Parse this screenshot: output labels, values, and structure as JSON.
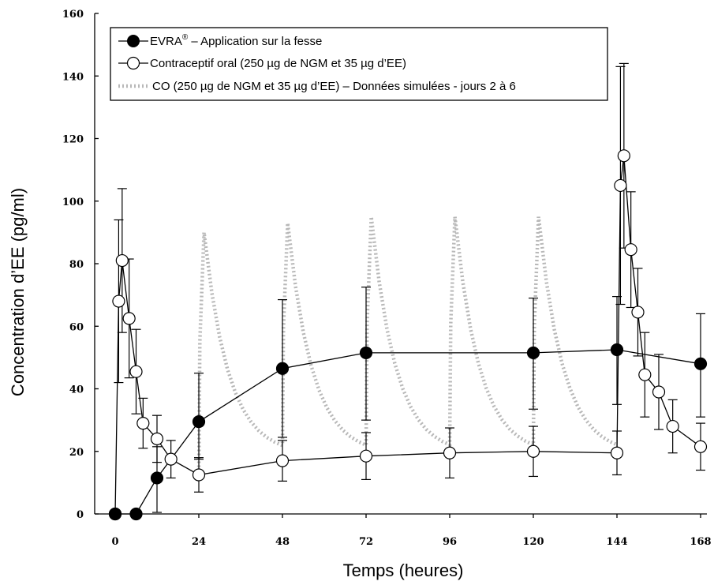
{
  "chart_data": {
    "type": "line",
    "xlabel": "Temps (heures)",
    "ylabel": "Concentration d’EE (pg/ml)",
    "xlim": [
      0,
      168
    ],
    "ylim": [
      0,
      160
    ],
    "xticks": [
      0,
      24,
      48,
      72,
      96,
      120,
      144,
      168
    ],
    "yticks": [
      0,
      20,
      40,
      60,
      80,
      100,
      120,
      140,
      160
    ],
    "grid": false,
    "legend_position": "top-left",
    "series": [
      {
        "name": "EVRA",
        "name_superscript": "®",
        "name_suffix": " – Application sur la fesse",
        "marker": "filled-circle",
        "color": "#000000",
        "x": [
          0,
          6,
          12,
          24,
          48,
          72,
          120,
          144,
          168
        ],
        "y": [
          0,
          0,
          11.5,
          29.5,
          46.5,
          51.5,
          51.5,
          52.5,
          48
        ],
        "err_up": [
          0,
          0,
          10,
          15.5,
          22,
          21,
          17.5,
          17,
          16
        ],
        "err_down": [
          0,
          0,
          11,
          12,
          22,
          21.5,
          18,
          17.5,
          17
        ]
      },
      {
        "name": "Contraceptif oral (250 µg de NGM et 35 µg d’EE)",
        "marker": "open-circle",
        "color": "#000000",
        "x": [
          0,
          1,
          2,
          4,
          6,
          8,
          12,
          16,
          24,
          48,
          72,
          96,
          120,
          144,
          145,
          146,
          148,
          150,
          152,
          156,
          160,
          168
        ],
        "y": [
          0,
          68,
          81,
          62.5,
          45.5,
          29,
          24,
          17.5,
          12.5,
          17,
          18.5,
          19.5,
          20,
          19.5,
          105,
          114.5,
          84.5,
          64.5,
          44.5,
          39,
          28,
          21.5
        ],
        "err_up": [
          0,
          26,
          23,
          19,
          13.5,
          8,
          7.5,
          6,
          5.5,
          6.5,
          7.5,
          8,
          8,
          7,
          38,
          29.5,
          18.5,
          14,
          13.5,
          12,
          8.5,
          7.5
        ],
        "err_down": [
          0,
          26,
          23,
          19,
          13.5,
          8,
          7.5,
          6,
          5.5,
          6.5,
          7.5,
          8,
          8,
          7,
          38,
          29.5,
          18.5,
          14,
          13.5,
          12,
          8.5,
          7.5
        ]
      },
      {
        "name": "CO (250 µg de NGM et 35 µg d’EE) – Données simulées - jours 2 à 6",
        "marker": "dotted-line",
        "color": "#b8b8b8",
        "peaks": [
          {
            "x": 25.5,
            "y": 90
          },
          {
            "x": 49.5,
            "y": 93
          },
          {
            "x": 73.5,
            "y": 95
          },
          {
            "x": 97.5,
            "y": 95
          },
          {
            "x": 121.5,
            "y": 95
          }
        ],
        "baseline_start": {
          "x": 24,
          "y": 12.5
        },
        "trough": 19,
        "end": {
          "x": 144,
          "y": 19
        }
      }
    ]
  }
}
